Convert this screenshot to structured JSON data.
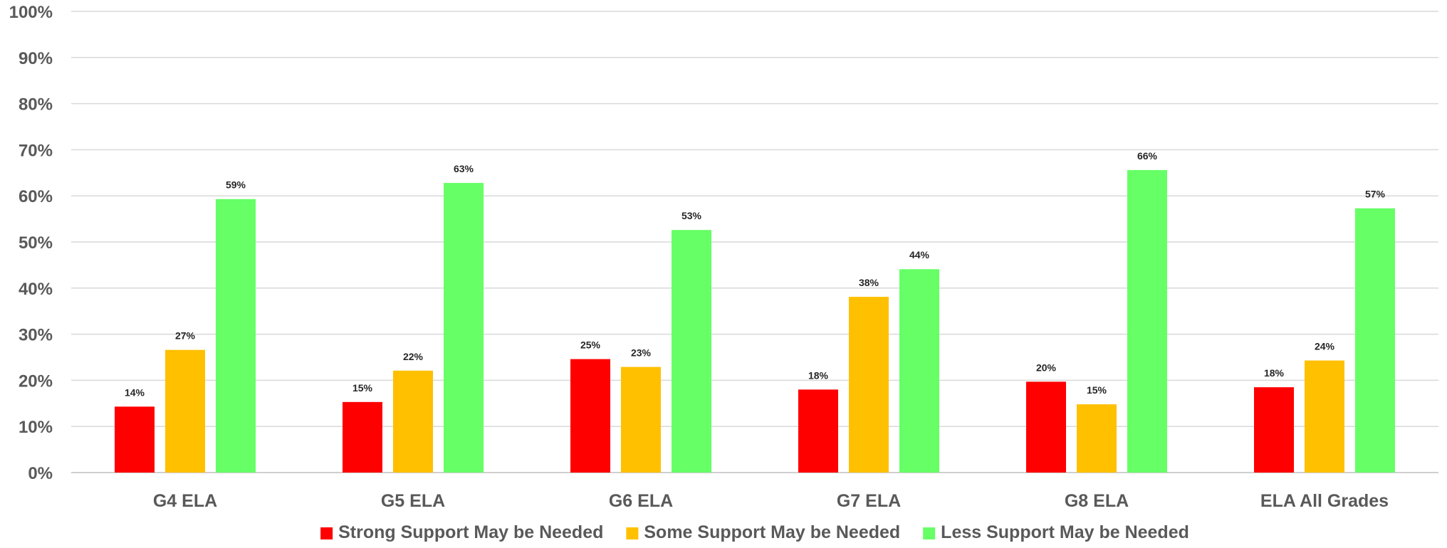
{
  "chart_data": {
    "type": "bar",
    "categories": [
      "G4 ELA",
      "G5 ELA",
      "G6 ELA",
      "G7 ELA",
      "G8 ELA",
      "ELA All Grades"
    ],
    "series": [
      {
        "name": "Strong Support May be Needed",
        "color": "#ff0000",
        "values": [
          14.3,
          15.3,
          24.6,
          18.0,
          19.7,
          18.5
        ],
        "labels": [
          "14%",
          "15%",
          "25%",
          "18%",
          "20%",
          "18%"
        ]
      },
      {
        "name": "Some Support May be Needed",
        "color": "#ffc000",
        "values": [
          26.6,
          22.1,
          22.9,
          38.1,
          14.8,
          24.3
        ],
        "labels": [
          "27%",
          "22%",
          "23%",
          "38%",
          "15%",
          "24%"
        ]
      },
      {
        "name": "Less Support May be Needed",
        "color": "#66ff66",
        "values": [
          59.3,
          62.8,
          52.6,
          44.1,
          65.6,
          57.3
        ],
        "labels": [
          "59%",
          "63%",
          "53%",
          "44%",
          "66%",
          "57%"
        ]
      }
    ],
    "yticks": [
      "0%",
      "10%",
      "20%",
      "30%",
      "40%",
      "50%",
      "60%",
      "70%",
      "80%",
      "90%",
      "100%"
    ],
    "ylim": [
      0,
      100
    ],
    "grid": true,
    "legend": "bottom"
  }
}
